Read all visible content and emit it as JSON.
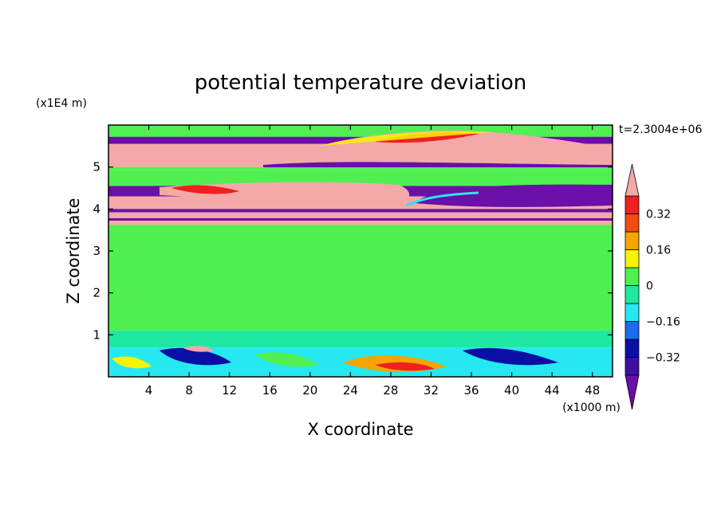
{
  "chart_data": {
    "type": "heatmap",
    "title": "potential temperature deviation",
    "time_label": "t=2.3004e+06",
    "xlabel": "X coordinate",
    "ylabel": "Z coordinate",
    "x_unit": "(x1000 m)",
    "y_unit": "(x1E4 m)",
    "x_ticks": [
      4,
      8,
      12,
      16,
      20,
      24,
      28,
      32,
      36,
      40,
      44,
      48
    ],
    "y_ticks": [
      1,
      2,
      3,
      4,
      5
    ],
    "xlim": [
      0,
      50
    ],
    "ylim": [
      0,
      6
    ],
    "colorbar": {
      "levels": [
        -0.4,
        -0.32,
        -0.24,
        -0.16,
        -0.08,
        0,
        0.08,
        0.16,
        0.24,
        0.32,
        0.4
      ],
      "labels": [
        {
          "value": 0.32,
          "text": "0.32"
        },
        {
          "value": 0.16,
          "text": "0.16"
        },
        {
          "value": 0,
          "text": "0"
        },
        {
          "value": -0.16,
          "text": "−0.16"
        },
        {
          "value": -0.32,
          "text": "−0.32"
        }
      ],
      "colors": [
        "#6a0fa8",
        "#3c0fa0",
        "#0a0fa5",
        "#1a6cf0",
        "#26e8f0",
        "#1fe8a0",
        "#50f050",
        "#f5f500",
        "#f5a400",
        "#f54a10",
        "#f02020",
        "#f5a8a8"
      ],
      "extend": "both"
    },
    "bands": [
      {
        "z": [
          5.72,
          6.0
        ],
        "value": 0.02
      },
      {
        "z": [
          5.55,
          5.72
        ],
        "value": -0.45
      },
      {
        "z": [
          5.0,
          5.55
        ],
        "value": 0.45
      },
      {
        "z": [
          4.92,
          5.0
        ],
        "value": 0.05
      },
      {
        "z": [
          4.55,
          4.92
        ],
        "value": 0.03
      },
      {
        "z": [
          4.3,
          4.55
        ],
        "value": -0.45
      },
      {
        "z": [
          4.0,
          4.3
        ],
        "value": 0.45
      },
      {
        "z": [
          3.92,
          4.0
        ],
        "value": -0.45
      },
      {
        "z": [
          3.78,
          3.92
        ],
        "value": 0.45
      },
      {
        "z": [
          3.72,
          3.78
        ],
        "value": -0.45
      },
      {
        "z": [
          3.62,
          3.72
        ],
        "value": 0.45
      },
      {
        "z": [
          1.1,
          3.62
        ],
        "value": 0.02
      },
      {
        "z": [
          0.7,
          1.1
        ],
        "value": -0.03
      },
      {
        "z": [
          0.0,
          0.7
        ],
        "value": -0.1
      }
    ]
  }
}
